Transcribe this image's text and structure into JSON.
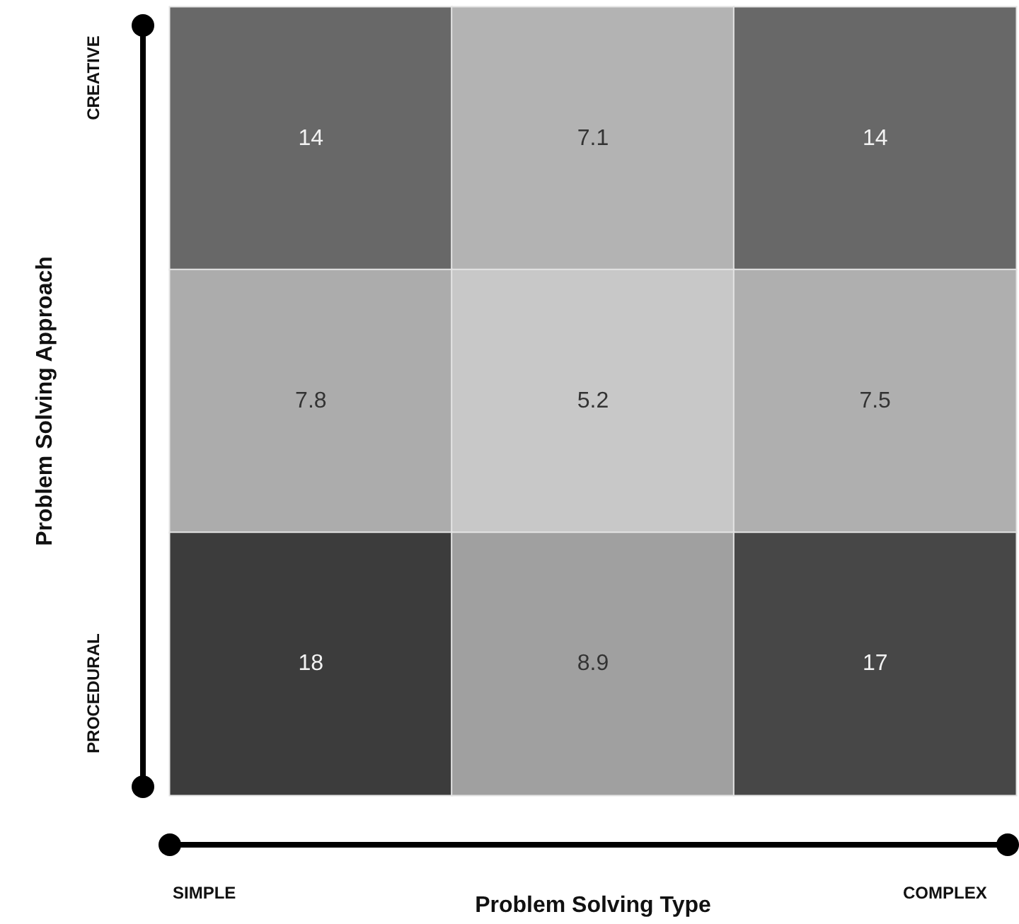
{
  "chart_data": {
    "type": "heatmap",
    "xlabel": "Problem Solving Type",
    "ylabel": "Problem Solving Approach",
    "categories": [
      null,
      null,
      null
    ],
    "y_categories": [
      null,
      null,
      null
    ],
    "cells": [
      [
        14,
        7.1,
        14
      ],
      [
        7.8,
        5.2,
        7.5
      ],
      [
        18,
        8.9,
        17
      ]
    ],
    "data_labels": true,
    "annotations": [
      "CREATIVE",
      "PROCEDURAL",
      "SIMPLE",
      "COMPLEX"
    ]
  }
}
